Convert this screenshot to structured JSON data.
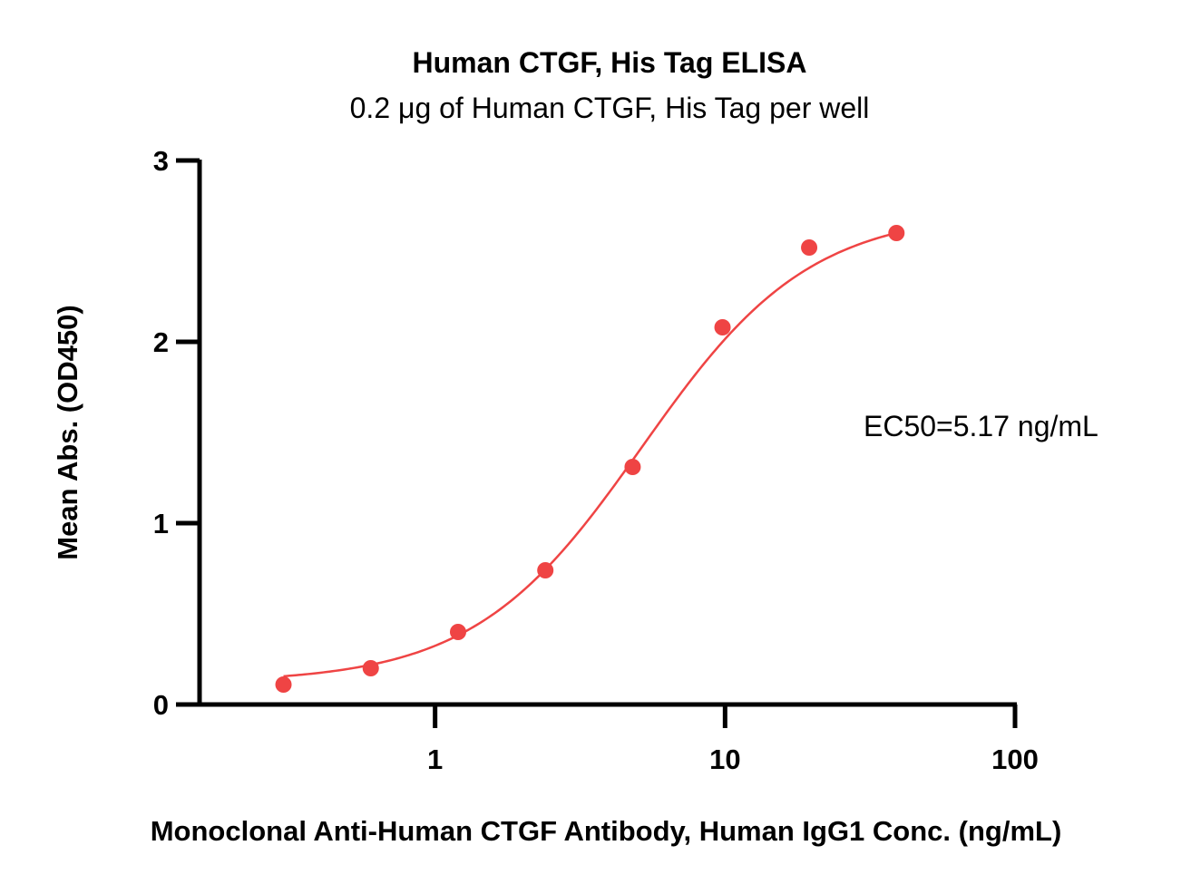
{
  "chart_data": {
    "type": "scatter",
    "title": "Human CTGF, His Tag ELISA",
    "subtitle": "0.2 μg of Human CTGF, His Tag per well",
    "xlabel": "Monoclonal Anti-Human CTGF Antibody, Human IgG1 Conc. (ng/mL)",
    "ylabel": "Mean Abs. (OD450)",
    "x_scale": "log",
    "xlim": [
      0.1,
      100
    ],
    "ylim": [
      0,
      3
    ],
    "x_ticks": [
      {
        "value": 1,
        "label": "1"
      },
      {
        "value": 10,
        "label": "10"
      },
      {
        "value": 100,
        "label": "100"
      }
    ],
    "y_ticks": [
      {
        "value": 0,
        "label": "0"
      },
      {
        "value": 1,
        "label": "1"
      },
      {
        "value": 2,
        "label": "2"
      },
      {
        "value": 3,
        "label": "3"
      }
    ],
    "grid": false,
    "series": [
      {
        "color": "#ef4444",
        "points": [
          {
            "x": 0.3,
            "y": 0.11
          },
          {
            "x": 0.6,
            "y": 0.2
          },
          {
            "x": 1.2,
            "y": 0.4
          },
          {
            "x": 2.4,
            "y": 0.74
          },
          {
            "x": 4.8,
            "y": 1.31
          },
          {
            "x": 9.8,
            "y": 2.08
          },
          {
            "x": 19.5,
            "y": 2.52
          },
          {
            "x": 39,
            "y": 2.6
          }
        ],
        "fit": {
          "model": "4PL",
          "bottom": 0.12,
          "top": 2.72,
          "ec50": 5.17,
          "hill": 1.5,
          "x_range": [
            0.3,
            39
          ]
        }
      }
    ],
    "annotations": [
      {
        "text": "EC50=5.17 ng/mL"
      }
    ]
  }
}
